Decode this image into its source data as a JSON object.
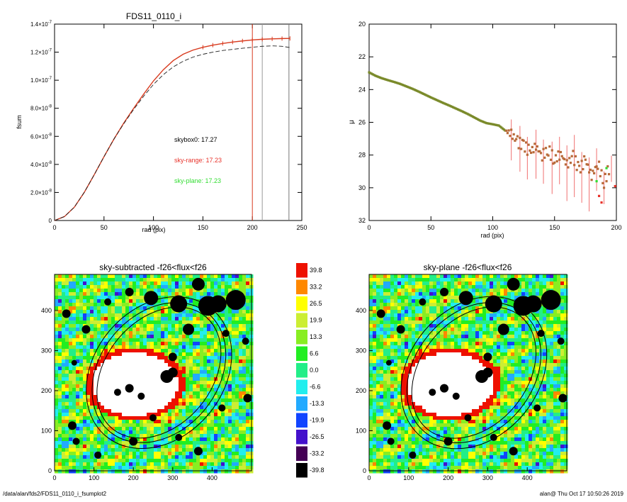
{
  "figure": {
    "footer_left": "/data/alan/fds2/FDS11_0110_i_fsumplot2",
    "footer_right": "alan@  Thu Oct 17 10:50:26 2019"
  },
  "chart_data": [
    {
      "type": "line",
      "title": "FDS11_0110_i",
      "xlabel": "rad (pix)",
      "ylabel": "fsum",
      "xlim": [
        0,
        250
      ],
      "ylim": [
        0,
        1.4e-07
      ],
      "xticks": [
        "0",
        "50",
        "100",
        "150",
        "200",
        "250"
      ],
      "yticks": [
        {
          "value": 0,
          "label": "0",
          "exp": ""
        },
        {
          "value": 2e-08,
          "label": "2.0×10",
          "exp": "-8"
        },
        {
          "value": 4e-08,
          "label": "4.0×10",
          "exp": "-8"
        },
        {
          "value": 6e-08,
          "label": "6.0×10",
          "exp": "-8"
        },
        {
          "value": 8e-08,
          "label": "8.0×10",
          "exp": "-8"
        },
        {
          "value": 1e-07,
          "label": "1.0×10",
          "exp": "-7"
        },
        {
          "value": 1.2e-07,
          "label": "1.2×10",
          "exp": "-7"
        },
        {
          "value": 1.4e-07,
          "label": "1.4×10",
          "exp": "-7"
        }
      ],
      "series": [
        {
          "color": "#d83a1e",
          "style": "solid",
          "x": [
            0,
            10,
            20,
            30,
            40,
            50,
            60,
            70,
            80,
            90,
            100,
            110,
            120,
            130,
            140,
            150,
            160,
            170,
            180,
            190,
            200,
            210,
            220,
            230,
            238
          ],
          "y": [
            0,
            2.8e-09,
            9.5e-09,
            2e-08,
            3.25e-08,
            4.55e-08,
            5.8e-08,
            6.95e-08,
            8e-08,
            9e-08,
            9.95e-08,
            1.075e-07,
            1.14e-07,
            1.185e-07,
            1.215e-07,
            1.235e-07,
            1.25e-07,
            1.262e-07,
            1.272e-07,
            1.28e-07,
            1.287e-07,
            1.292e-07,
            1.295e-07,
            1.297e-07,
            1.298e-07
          ]
        },
        {
          "color": "#222222",
          "style": "dashed",
          "x": [
            0,
            10,
            20,
            30,
            40,
            50,
            60,
            70,
            80,
            90,
            100,
            110,
            120,
            130,
            140,
            150,
            160,
            170,
            180,
            190,
            200,
            210,
            220,
            230,
            238
          ],
          "y": [
            0,
            2.8e-09,
            9.5e-09,
            2e-08,
            3.25e-08,
            4.55e-08,
            5.8e-08,
            6.9e-08,
            7.92e-08,
            8.85e-08,
            9.7e-08,
            1.04e-07,
            1.095e-07,
            1.135e-07,
            1.165e-07,
            1.185e-07,
            1.2e-07,
            1.212e-07,
            1.22e-07,
            1.228e-07,
            1.235e-07,
            1.242e-07,
            1.245e-07,
            1.242e-07,
            1.233e-07
          ]
        }
      ],
      "vlines": [
        {
          "x": 200,
          "color": "#d83a1e"
        },
        {
          "x": 210,
          "color": "#999999"
        },
        {
          "x": 237,
          "color": "#777777"
        }
      ],
      "annotations": [
        {
          "text": "skybox0: 17.27",
          "color": "#000000"
        },
        {
          "text": "sky-range: 17.23",
          "color": "#e8322a"
        },
        {
          "text": "sky-plane: 17.23",
          "color": "#33dd33"
        }
      ]
    },
    {
      "type": "scatter",
      "title": "",
      "xlabel": "rad (pix)",
      "ylabel": "μ",
      "xlim": [
        0,
        200
      ],
      "ylim": [
        32,
        20
      ],
      "xticks": [
        "0",
        "50",
        "100",
        "150",
        "200"
      ],
      "yticks": [
        "20",
        "22",
        "24",
        "26",
        "28",
        "30",
        "32"
      ],
      "points": [
        [
          0,
          22.95
        ],
        [
          5,
          23.15
        ],
        [
          10,
          23.3
        ],
        [
          15,
          23.42
        ],
        [
          20,
          23.53
        ],
        [
          25,
          23.65
        ],
        [
          30,
          23.8
        ],
        [
          35,
          23.95
        ],
        [
          40,
          24.12
        ],
        [
          45,
          24.3
        ],
        [
          50,
          24.48
        ],
        [
          55,
          24.65
        ],
        [
          60,
          24.82
        ],
        [
          65,
          24.98
        ],
        [
          70,
          25.15
        ],
        [
          75,
          25.32
        ],
        [
          80,
          25.5
        ],
        [
          85,
          25.7
        ],
        [
          90,
          25.9
        ],
        [
          95,
          26.05
        ],
        [
          100,
          26.12
        ],
        [
          105,
          26.2
        ],
        [
          110,
          26.5
        ],
        [
          115,
          26.7
        ],
        [
          120,
          27.2
        ],
        [
          125,
          27.4
        ],
        [
          130,
          27.8
        ],
        [
          135,
          27.5
        ],
        [
          140,
          28.0
        ],
        [
          145,
          27.7
        ],
        [
          150,
          28.3
        ],
        [
          155,
          27.9
        ],
        [
          160,
          28.6
        ],
        [
          165,
          28.1
        ],
        [
          170,
          28.9
        ],
        [
          175,
          28.3
        ],
        [
          180,
          29.3
        ],
        [
          185,
          28.5
        ],
        [
          190,
          29.7
        ],
        [
          195,
          28.6
        ]
      ],
      "errorbars": [
        [
          115,
          2.5
        ],
        [
          122,
          2.8
        ],
        [
          128,
          2.6
        ],
        [
          135,
          3.0
        ],
        [
          141,
          2.7
        ],
        [
          148,
          3.2
        ],
        [
          154,
          2.9
        ],
        [
          160,
          3.4
        ],
        [
          166,
          3.8
        ],
        [
          172,
          3.1
        ],
        [
          178,
          3.3
        ],
        [
          184,
          2.6
        ],
        [
          190,
          2.0
        ],
        [
          196,
          1.6
        ]
      ]
    },
    {
      "type": "heatmap",
      "title": "sky-subtracted -f26<flux<f26",
      "xlim": [
        0,
        500
      ],
      "ylim": [
        0,
        490
      ],
      "xticks": [
        "0",
        "100",
        "200",
        "300",
        "400"
      ],
      "yticks": [
        "0",
        "100",
        "200",
        "300",
        "400"
      ]
    },
    {
      "type": "heatmap",
      "title": "sky-plane -f26<flux<f26",
      "xlim": [
        0,
        500
      ],
      "ylim": [
        0,
        490
      ],
      "xticks": [
        "0",
        "100",
        "200",
        "300",
        "400"
      ],
      "yticks": [
        "0",
        "100",
        "200",
        "300",
        "400"
      ]
    }
  ],
  "colorbar": {
    "labels": [
      "39.8",
      "33.2",
      "26.5",
      "19.9",
      "13.3",
      "6.6",
      "0.0",
      "-6.6",
      "-13.3",
      "-19.9",
      "-26.5",
      "-33.2",
      "-39.8"
    ],
    "colors": [
      "#ee1100",
      "#ff8800",
      "#ffff00",
      "#ccee33",
      "#88ee22",
      "#22ee22",
      "#22ee88",
      "#22eeee",
      "#22aaff",
      "#1144ff",
      "#4411cc",
      "#440055",
      "#000000"
    ]
  },
  "map_colors": {
    "levels": [
      "#000000",
      "#440055",
      "#4411cc",
      "#1144ff",
      "#22aaff",
      "#22eeee",
      "#22ee88",
      "#22ee22",
      "#88ee22",
      "#ccee33",
      "#ffff00",
      "#ff8800",
      "#ee1100",
      "#ffffff"
    ],
    "ellipse": "#000000"
  }
}
